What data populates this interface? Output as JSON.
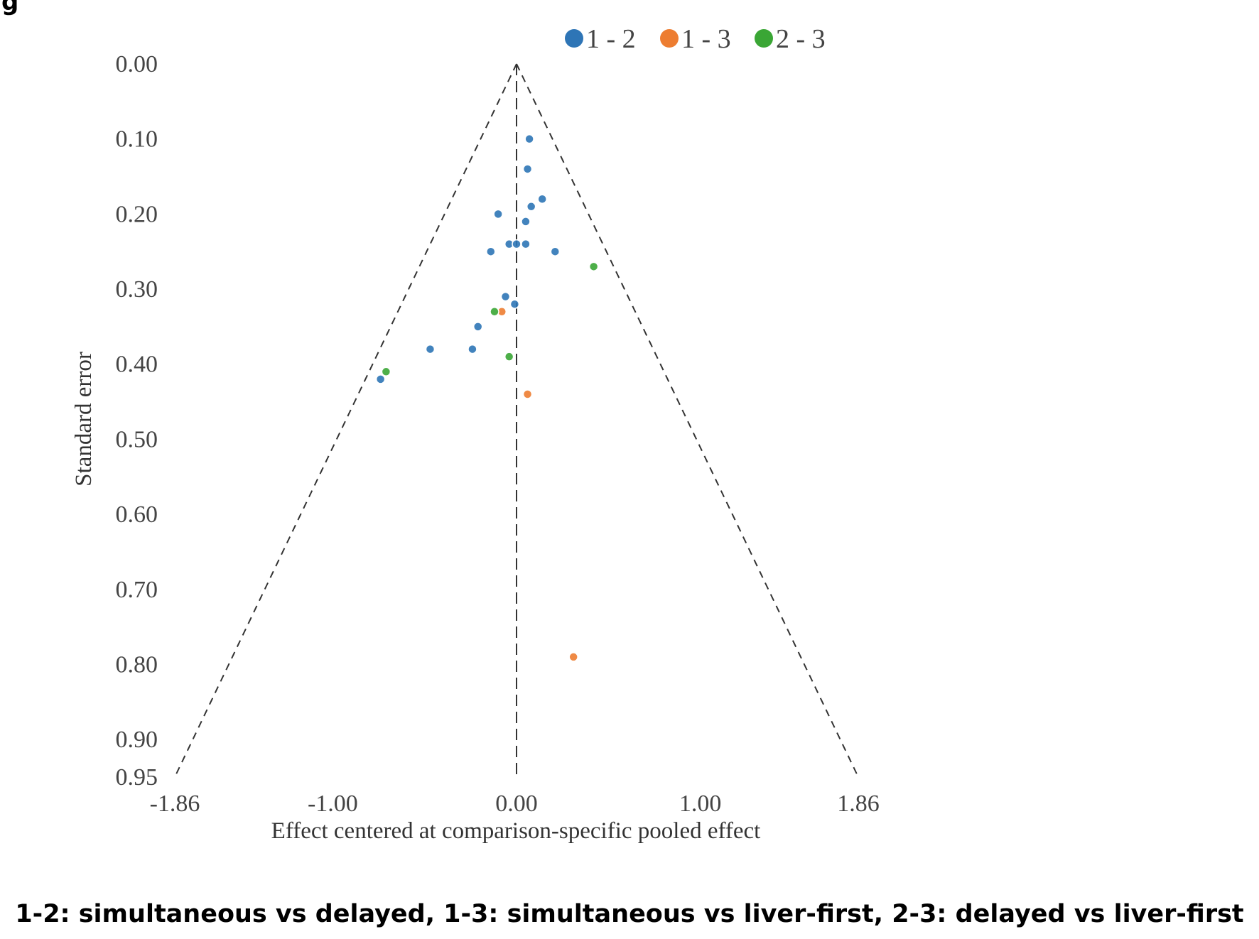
{
  "figure": {
    "title_fragment": "g",
    "footnote": "1-2: simultaneous vs delayed, 1-3: simultaneous vs liver-first, 2-3: delayed vs liver-first"
  },
  "colors": {
    "series_1_2": "#2E75B6",
    "series_1_3": "#ED7D31",
    "series_2_3": "#3AA635",
    "funnel_line": "#333333"
  },
  "chart_data": {
    "type": "scatter",
    "subtype": "comparison-adjusted funnel plot",
    "xlabel": "Effect centered at comparison-specific pooled effect",
    "ylabel": "Standard error",
    "xlim": [
      -1.86,
      1.86
    ],
    "ylim": [
      0.95,
      0.0
    ],
    "y_inverted": true,
    "x_ticks": [
      -1.86,
      -1.0,
      0.0,
      1.0,
      1.86
    ],
    "x_tick_labels": [
      "-1.86",
      "-1.00",
      "0.00",
      "1.00",
      "1.86"
    ],
    "y_ticks": [
      0.0,
      0.1,
      0.2,
      0.3,
      0.4,
      0.5,
      0.6,
      0.7,
      0.8,
      0.9,
      0.95
    ],
    "y_tick_labels": [
      "0.00",
      "0.10",
      "0.20",
      "0.30",
      "0.40",
      "0.50",
      "0.60",
      "0.70",
      "0.80",
      "0.90",
      "0.95"
    ],
    "grid": false,
    "legend_position": "top",
    "funnel": {
      "apex": [
        0.0,
        0.0
      ],
      "bottom_left": [
        -1.86,
        0.95
      ],
      "bottom_right": [
        1.86,
        0.95
      ],
      "center_line_x": 0.0
    },
    "series": [
      {
        "name": "1 - 2",
        "color_key": "series_1_2",
        "points": [
          {
            "x": 0.07,
            "y": 0.1
          },
          {
            "x": 0.06,
            "y": 0.14
          },
          {
            "x": 0.14,
            "y": 0.18
          },
          {
            "x": 0.08,
            "y": 0.19
          },
          {
            "x": -0.1,
            "y": 0.2
          },
          {
            "x": 0.05,
            "y": 0.21
          },
          {
            "x": -0.04,
            "y": 0.24
          },
          {
            "x": 0.0,
            "y": 0.24
          },
          {
            "x": 0.05,
            "y": 0.24
          },
          {
            "x": -0.14,
            "y": 0.25
          },
          {
            "x": 0.21,
            "y": 0.25
          },
          {
            "x": -0.06,
            "y": 0.31
          },
          {
            "x": -0.01,
            "y": 0.32
          },
          {
            "x": -0.21,
            "y": 0.35
          },
          {
            "x": -0.47,
            "y": 0.38
          },
          {
            "x": -0.24,
            "y": 0.38
          },
          {
            "x": -0.74,
            "y": 0.42
          }
        ]
      },
      {
        "name": "1 - 3",
        "color_key": "series_1_3",
        "points": [
          {
            "x": -0.08,
            "y": 0.33
          },
          {
            "x": 0.06,
            "y": 0.44
          },
          {
            "x": 0.31,
            "y": 0.79
          }
        ]
      },
      {
        "name": "2 - 3",
        "color_key": "series_2_3",
        "points": [
          {
            "x": 0.42,
            "y": 0.27
          },
          {
            "x": -0.12,
            "y": 0.33
          },
          {
            "x": -0.04,
            "y": 0.39
          },
          {
            "x": -0.71,
            "y": 0.41
          }
        ]
      }
    ]
  }
}
